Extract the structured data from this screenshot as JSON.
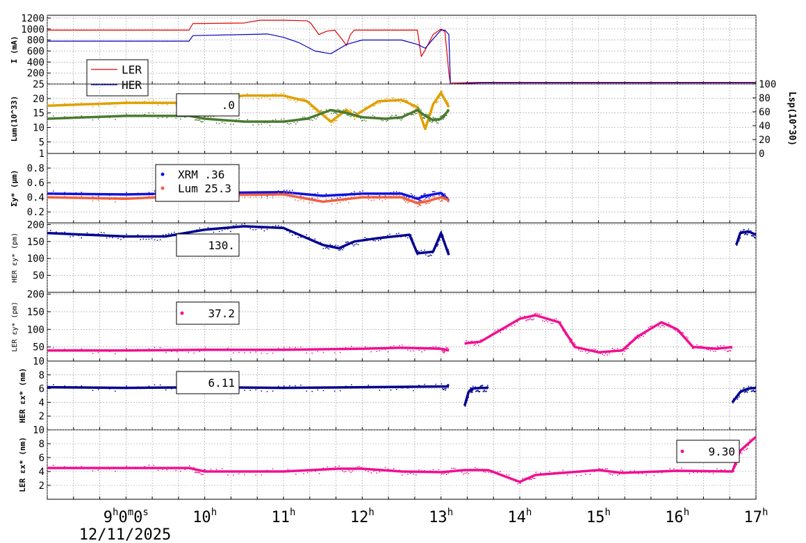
{
  "chart_data": {
    "type": "line",
    "title": "",
    "date_label": "12/11/2025",
    "x_ticks": [
      {
        "label": "9h0m0s",
        "pos": 9
      },
      {
        "label": "10h",
        "pos": 10
      },
      {
        "label": "11h",
        "pos": 11
      },
      {
        "label": "12h",
        "pos": 12
      },
      {
        "label": "13h",
        "pos": 13
      },
      {
        "label": "14h",
        "pos": 14
      },
      {
        "label": "15h",
        "pos": 15
      },
      {
        "label": "16h",
        "pos": 16
      },
      {
        "label": "17h",
        "pos": 17
      }
    ],
    "xlim": [
      8.0,
      17.0
    ],
    "panels": [
      {
        "id": "current",
        "ylabel": "I (mA)",
        "ylim": [
          0,
          1250
        ],
        "yticks": [
          200,
          400,
          600,
          800,
          1000,
          1200
        ],
        "legend": [
          {
            "label": "LER",
            "color": "#e00000"
          },
          {
            "label": "HER",
            "color": "#0000c0"
          }
        ],
        "series": [
          {
            "name": "LER",
            "color": "#e00000",
            "style": "line",
            "x": [
              8.0,
              9.8,
              9.85,
              10.5,
              10.7,
              11.0,
              11.3,
              11.35,
              11.45,
              11.55,
              11.65,
              11.75,
              11.8,
              11.85,
              11.9,
              12.0,
              12.7,
              12.75,
              12.8,
              12.9,
              13.0,
              13.05,
              13.1,
              13.12,
              13.14,
              13.5,
              15.0,
              16.0,
              16.8,
              17.0
            ],
            "y": [
              980,
              980,
              1100,
              1110,
              1160,
              1160,
              1150,
              1100,
              900,
              960,
              980,
              800,
              700,
              900,
              980,
              980,
              980,
              500,
              620,
              900,
              1000,
              950,
              200,
              0,
              20,
              30,
              30,
              30,
              30,
              30
            ]
          },
          {
            "name": "HER",
            "color": "#0000c0",
            "style": "line",
            "x": [
              8.0,
              9.8,
              9.85,
              10.5,
              10.8,
              11.0,
              11.2,
              11.4,
              11.6,
              11.8,
              12.0,
              12.5,
              12.7,
              12.8,
              12.9,
              13.0,
              13.05,
              13.1,
              13.12,
              13.14,
              13.5,
              15.0,
              16.0,
              16.8,
              17.0
            ],
            "y": [
              780,
              780,
              880,
              900,
              910,
              850,
              750,
              600,
              550,
              720,
              800,
              800,
              720,
              650,
              820,
              980,
              980,
              900,
              0,
              0,
              20,
              20,
              20,
              20,
              20
            ]
          }
        ]
      },
      {
        "id": "luminosity",
        "ylabel": "Lum(10^33)",
        "ylim": [
          1,
          25
        ],
        "yticks": [
          1,
          5,
          10,
          15,
          20,
          25
        ],
        "ylabel_right": "Lsp(10^30)",
        "ylim_right": [
          0,
          100
        ],
        "yticks_right": [
          0,
          20,
          40,
          60,
          80,
          100
        ],
        "legend_value": ".0",
        "series": [
          {
            "name": "Lum",
            "color": "#e0a000",
            "style": "line",
            "x": [
              8.0,
              9.0,
              9.8,
              10.0,
              10.5,
              11.0,
              11.3,
              11.6,
              11.8,
              11.9,
              12.2,
              12.5,
              12.7,
              12.8,
              12.9,
              13.0,
              13.1
            ],
            "y": [
              17.5,
              18.5,
              18.5,
              19.5,
              21,
              21,
              19,
              12,
              16,
              14,
              19,
              19.5,
              17,
              9.5,
              18,
              22,
              17
            ]
          },
          {
            "name": "Lsp",
            "color": "#4a7a30",
            "style": "line",
            "x": [
              8.0,
              9.0,
              9.8,
              10.0,
              10.5,
              11.0,
              11.3,
              11.6,
              11.8,
              12.0,
              12.3,
              12.5,
              12.7,
              12.8,
              12.9,
              13.0,
              13.1
            ],
            "y": [
              13.0,
              14,
              14,
              13,
              12,
              12,
              13,
              16,
              15,
              13.5,
              13,
              13.5,
              16,
              14,
              12.5,
              13,
              16
            ]
          }
        ]
      },
      {
        "id": "sigma_y",
        "ylabel": "Σy* (μm)",
        "ylim": [
          0.05,
          1.0
        ],
        "yticks": [
          0.2,
          0.4,
          0.6,
          0.8
        ],
        "legend": [
          {
            "label": "XRM",
            "value": ".36",
            "color": "#1010e0"
          },
          {
            "label": "Lum",
            "value": "25.3",
            "color": "#f06040"
          }
        ],
        "series": [
          {
            "name": "XRM",
            "color": "#1010e0",
            "style": "line",
            "x": [
              8.0,
              9.0,
              10.0,
              11.0,
              11.5,
              12.0,
              12.5,
              12.7,
              12.8,
              13.0,
              13.1
            ],
            "y": [
              0.45,
              0.44,
              0.46,
              0.47,
              0.42,
              0.45,
              0.45,
              0.38,
              0.42,
              0.46,
              0.36
            ]
          },
          {
            "name": "Lum",
            "color": "#f06040",
            "style": "line",
            "x": [
              8.0,
              9.0,
              10.0,
              11.0,
              11.5,
              12.0,
              12.5,
              12.7,
              12.8,
              13.0,
              13.1
            ],
            "y": [
              0.4,
              0.38,
              0.43,
              0.44,
              0.34,
              0.4,
              0.4,
              0.32,
              0.34,
              0.4,
              0.36
            ]
          }
        ]
      },
      {
        "id": "her_eps_y",
        "ylabel": "HER εy* (pm)",
        "ylim": [
          0,
          205
        ],
        "yticks": [
          50,
          100,
          150,
          200
        ],
        "legend_value": "130.",
        "series": [
          {
            "name": "HER εy*",
            "color": "#000090",
            "style": "line",
            "x": [
              8.0,
              8.5,
              9.0,
              9.5,
              10.0,
              10.5,
              11.0,
              11.5,
              11.7,
              11.9,
              12.2,
              12.6,
              12.7,
              12.9,
              13.0,
              13.1
            ],
            "y": [
              175,
              170,
              165,
              165,
              185,
              195,
              190,
              140,
              130,
              150,
              160,
              170,
              115,
              120,
              175,
              110
            ]
          },
          {
            "name": "HER εy* (late)",
            "color": "#000090",
            "style": "line",
            "x": [
              16.75,
              16.8,
              16.9,
              17.0
            ],
            "y": [
              140,
              175,
              180,
              170
            ]
          }
        ]
      },
      {
        "id": "ler_eps_y",
        "ylabel": "LER εy* (pm)",
        "ylim": [
          10,
          205
        ],
        "yticks": [
          10,
          50,
          100,
          150,
          200
        ],
        "legend_value": "37.2",
        "series": [
          {
            "name": "LER εy*",
            "color": "#f01090",
            "style": "line",
            "x": [
              8.0,
              9.0,
              10.0,
              11.0,
              12.0,
              12.5,
              13.0,
              13.1
            ],
            "y": [
              40,
              40,
              42,
              42,
              45,
              48,
              45,
              40
            ]
          },
          {
            "name": "LER εy* (mid)",
            "color": "#f01090",
            "style": "line",
            "x": [
              13.3,
              13.5,
              14.0,
              14.2,
              14.5,
              14.7,
              15.0,
              15.3,
              15.5,
              15.8,
              16.0,
              16.2,
              16.5,
              16.7
            ],
            "y": [
              60,
              65,
              130,
              140,
              120,
              50,
              35,
              40,
              80,
              120,
              100,
              50,
              45,
              50
            ]
          }
        ]
      },
      {
        "id": "her_eps_x",
        "ylabel": "HER εx* (nm)",
        "ylim": [
          0,
          10
        ],
        "yticks": [
          2,
          4,
          6,
          8
        ],
        "legend_value": "6.11",
        "series": [
          {
            "name": "HER εx*",
            "color": "#000090",
            "style": "line",
            "x": [
              8.0,
              9.0,
              10.0,
              11.0,
              12.0,
              13.0,
              13.1
            ],
            "y": [
              6.2,
              6.1,
              6.2,
              6.1,
              6.2,
              6.3,
              6.3
            ]
          },
          {
            "name": "HER εx* (mid)",
            "color": "#000090",
            "style": "line",
            "x": [
              13.3,
              13.35,
              13.4,
              13.5,
              13.6
            ],
            "y": [
              3.5,
              5.5,
              6.0,
              6.1,
              6.1
            ]
          },
          {
            "name": "HER εx* (late)",
            "color": "#000090",
            "style": "line",
            "x": [
              16.7,
              16.8,
              16.9,
              17.0
            ],
            "y": [
              4.0,
              5.5,
              6.0,
              6.1
            ]
          }
        ]
      },
      {
        "id": "ler_eps_x",
        "ylabel": "LER εx* (nm)",
        "ylim": [
          0,
          10
        ],
        "yticks": [
          2,
          4,
          6,
          8,
          10
        ],
        "legend_value": "9.30",
        "series": [
          {
            "name": "LER εx*",
            "color": "#f01090",
            "style": "line",
            "x": [
              8.0,
              9.0,
              9.8,
              10.0,
              11.0,
              11.7,
              12.0,
              12.5,
              13.0,
              13.3,
              13.6,
              14.0,
              14.2,
              15.0,
              15.3,
              16.0,
              16.7,
              16.8,
              17.0
            ],
            "y": [
              4.5,
              4.5,
              4.5,
              4.0,
              4.0,
              4.4,
              4.4,
              4.0,
              3.9,
              4.2,
              4.2,
              2.5,
              3.5,
              4.2,
              3.8,
              4.1,
              4.0,
              7,
              9
            ]
          }
        ]
      }
    ]
  }
}
